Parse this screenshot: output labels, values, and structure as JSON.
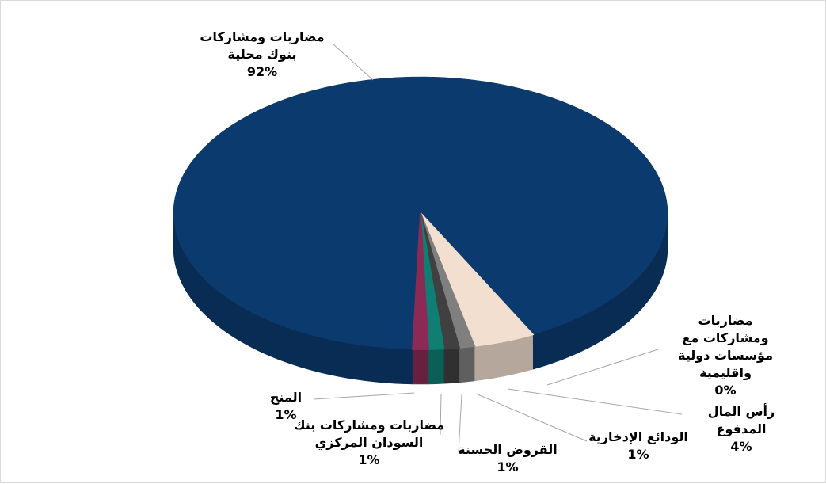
{
  "chart_data": {
    "type": "pie",
    "categories": [
      "مضاربات ومشاركات\nبنوك محلية",
      "مضاربات ومشاركات مع\nمؤسسات دولية واقليمية",
      "رأس المال المدفوع",
      "الودائع الإدخارية",
      "القروض الحسنة",
      "مضاربات ومشاركات بنك\nالسودان المركزي",
      "المنح"
    ],
    "values": [
      92,
      0,
      4,
      1,
      1,
      1,
      1
    ],
    "value_labels": [
      "92%",
      "0%",
      "4%",
      "1%",
      "1%",
      "1%",
      "1%"
    ],
    "colors": [
      "#0b3a6e",
      "#c9a100",
      "#f3dfd0",
      "#7f7f7f",
      "#404040",
      "#0f7f73",
      "#8b2a55"
    ]
  }
}
